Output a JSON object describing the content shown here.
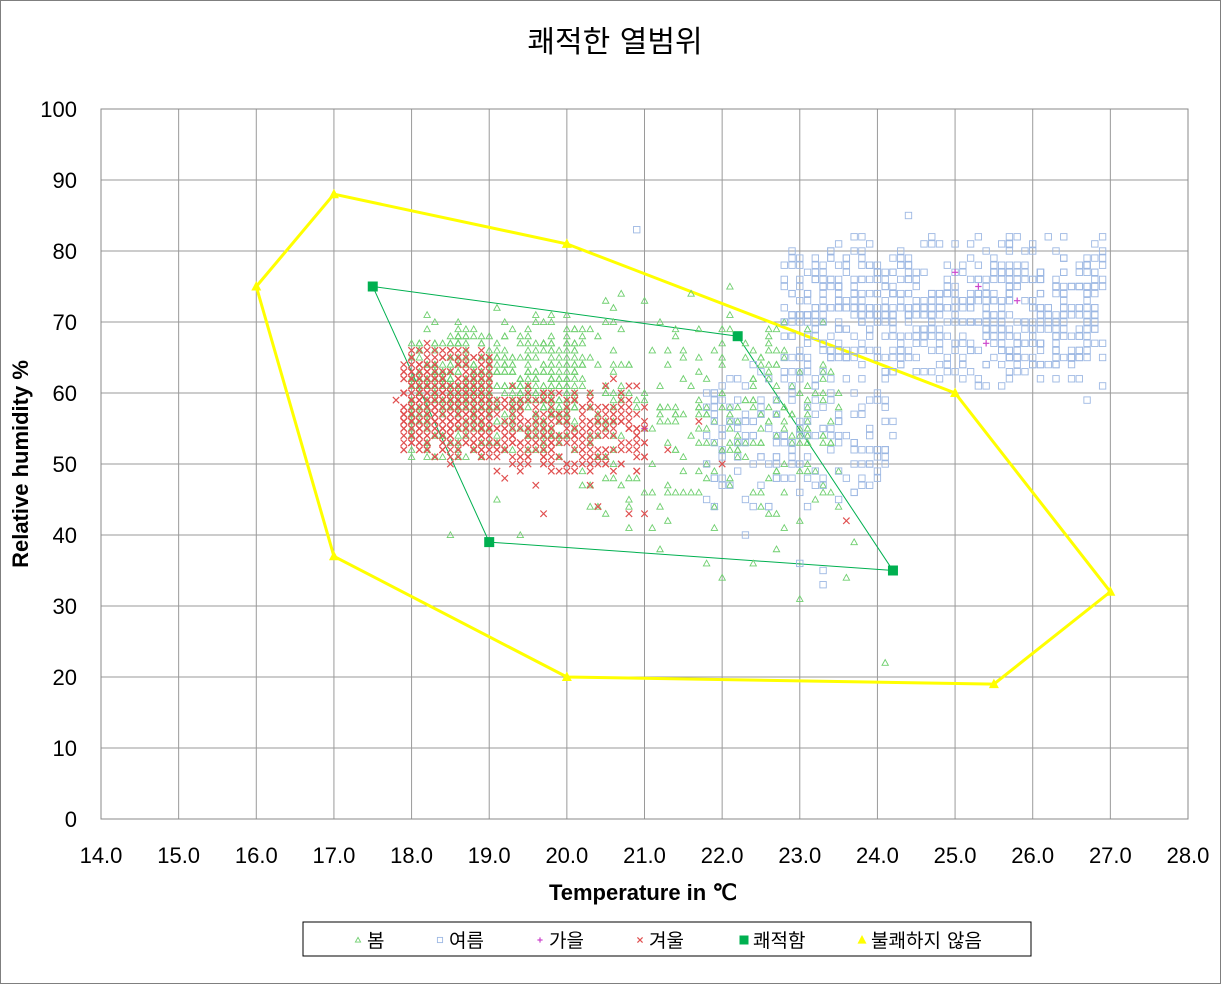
{
  "chart_data": {
    "type": "scatter",
    "title": "쾌적한 열범위",
    "xlabel": "Temperature in ℃",
    "ylabel": "Relative humidity %",
    "xlim": [
      14.0,
      28.0
    ],
    "ylim": [
      0,
      100
    ],
    "xticks": [
      "14.0",
      "15.0",
      "16.0",
      "17.0",
      "18.0",
      "19.0",
      "20.0",
      "21.0",
      "22.0",
      "23.0",
      "24.0",
      "25.0",
      "26.0",
      "27.0",
      "28.0"
    ],
    "yticks": [
      "0",
      "10",
      "20",
      "30",
      "40",
      "50",
      "60",
      "70",
      "80",
      "90",
      "100"
    ],
    "grid": true,
    "legend_position": "bottom",
    "series": [
      {
        "name": "봄",
        "marker": "triangle-open",
        "color": "#6fcf6f",
        "clusters": [
          {
            "count": 520,
            "x": [
              18.0,
              20.2
            ],
            "y": [
              50,
              72
            ]
          },
          {
            "count": 260,
            "x": [
              20.2,
              23.5
            ],
            "y": [
              40,
              73
            ]
          }
        ],
        "points": [
          [
            18.2,
            71
          ],
          [
            19.6,
            71
          ],
          [
            20.5,
            73
          ],
          [
            20.7,
            74
          ],
          [
            21.0,
            73
          ],
          [
            21.6,
            74
          ],
          [
            22.1,
            75
          ],
          [
            20.1,
            63
          ],
          [
            21.1,
            41
          ],
          [
            21.5,
            46
          ],
          [
            21.8,
            36
          ],
          [
            22.0,
            34
          ],
          [
            22.4,
            36
          ],
          [
            22.7,
            38
          ],
          [
            23.0,
            31
          ],
          [
            23.3,
            47
          ],
          [
            23.6,
            34
          ],
          [
            23.7,
            39
          ],
          [
            24.1,
            22
          ],
          [
            18.5,
            40
          ],
          [
            19.1,
            45
          ],
          [
            19.4,
            40
          ],
          [
            20.5,
            43
          ],
          [
            21.2,
            38
          ]
        ]
      },
      {
        "name": "여름",
        "marker": "square-open",
        "color": "#9db8e3",
        "clusters": [
          {
            "count": 650,
            "x": [
              22.8,
              26.9
            ],
            "y": [
              60,
              83
            ]
          },
          {
            "count": 170,
            "x": [
              21.8,
              24.2
            ],
            "y": [
              42,
              66
            ]
          }
        ],
        "points": [
          [
            20.9,
            83
          ],
          [
            24.4,
            85
          ],
          [
            26.9,
            82
          ],
          [
            26.7,
            59
          ],
          [
            23.3,
            35
          ],
          [
            23.3,
            33
          ],
          [
            23.0,
            36
          ],
          [
            22.3,
            40
          ],
          [
            22.6,
            44
          ]
        ]
      },
      {
        "name": "가을",
        "marker": "plus",
        "color": "#cc44cc",
        "points": [
          [
            25.0,
            77
          ],
          [
            25.3,
            75
          ],
          [
            25.8,
            73
          ],
          [
            25.4,
            67
          ],
          [
            21.0,
            55
          ]
        ]
      },
      {
        "name": "겨울",
        "marker": "x",
        "color": "#e05050",
        "clusters": [
          {
            "count": 650,
            "x": [
              17.9,
              19.0
            ],
            "y": [
              50,
              67
            ]
          },
          {
            "count": 330,
            "x": [
              18.9,
              21.0
            ],
            "y": [
              47,
              62
            ]
          }
        ],
        "points": [
          [
            17.8,
            59
          ],
          [
            19.6,
            47
          ],
          [
            19.7,
            43
          ],
          [
            20.4,
            44
          ],
          [
            20.8,
            43
          ],
          [
            21.0,
            43
          ],
          [
            21.3,
            52
          ],
          [
            21.7,
            56
          ],
          [
            22.0,
            50
          ],
          [
            23.6,
            42
          ]
        ]
      },
      {
        "name": "쾌적함",
        "marker": "square-filled",
        "color": "#00b050",
        "closed": true,
        "points": [
          [
            17.5,
            75
          ],
          [
            22.2,
            68
          ],
          [
            24.2,
            35
          ],
          [
            19.0,
            39
          ]
        ]
      },
      {
        "name": "불쾌하지 않음",
        "marker": "triangle-filled",
        "color": "#ffff00",
        "closed": true,
        "points": [
          [
            16.0,
            75
          ],
          [
            17.0,
            88
          ],
          [
            20.0,
            81
          ],
          [
            25.0,
            60
          ],
          [
            27.0,
            32
          ],
          [
            25.5,
            19
          ],
          [
            20.0,
            20
          ],
          [
            17.0,
            37
          ]
        ]
      }
    ]
  }
}
